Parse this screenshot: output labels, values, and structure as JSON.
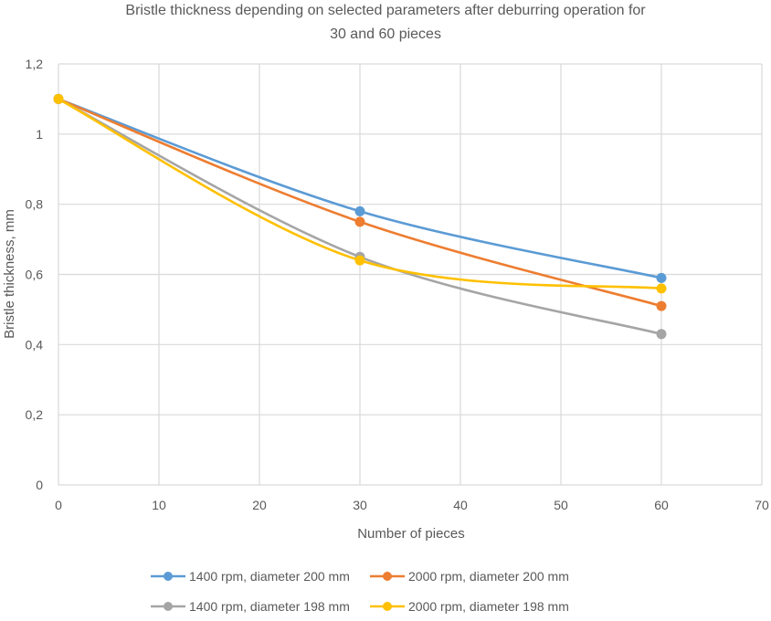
{
  "chart_data": {
    "type": "line",
    "title_lines": [
      "Bristle thickness depending on selected parameters after deburring operation for",
      "30 and 60 pieces"
    ],
    "xlabel": "Number of pieces",
    "ylabel": "Bristle thickness, mm",
    "xlim": [
      0,
      70
    ],
    "ylim": [
      0,
      1.2
    ],
    "x_ticks": [
      0,
      10,
      20,
      30,
      40,
      50,
      60,
      70
    ],
    "x_tick_labels": [
      "0",
      "10",
      "20",
      "30",
      "40",
      "50",
      "60",
      "70"
    ],
    "y_ticks": [
      0,
      0.2,
      0.4,
      0.6,
      0.8,
      1,
      1.2
    ],
    "y_tick_labels": [
      "0",
      "0,2",
      "0,4",
      "0,6",
      "0,8",
      "1",
      "1,2"
    ],
    "grid": true,
    "smooth": true,
    "legend_position": "bottom",
    "x": [
      0,
      30,
      60
    ],
    "series": [
      {
        "name": "1400 rpm, diameter 200 mm",
        "color": "#5B9BD5",
        "values": [
          1.1,
          0.78,
          0.59
        ]
      },
      {
        "name": "2000 rpm, diameter  200 mm",
        "color": "#ED7D31",
        "values": [
          1.1,
          0.75,
          0.51
        ]
      },
      {
        "name": "1400 rpm, diameter  198 mm",
        "color": "#A5A5A5",
        "values": [
          1.1,
          0.65,
          0.43
        ]
      },
      {
        "name": "2000 rpm, diameter  198 mm",
        "color": "#FFC000",
        "values": [
          1.1,
          0.64,
          0.56
        ]
      }
    ]
  }
}
